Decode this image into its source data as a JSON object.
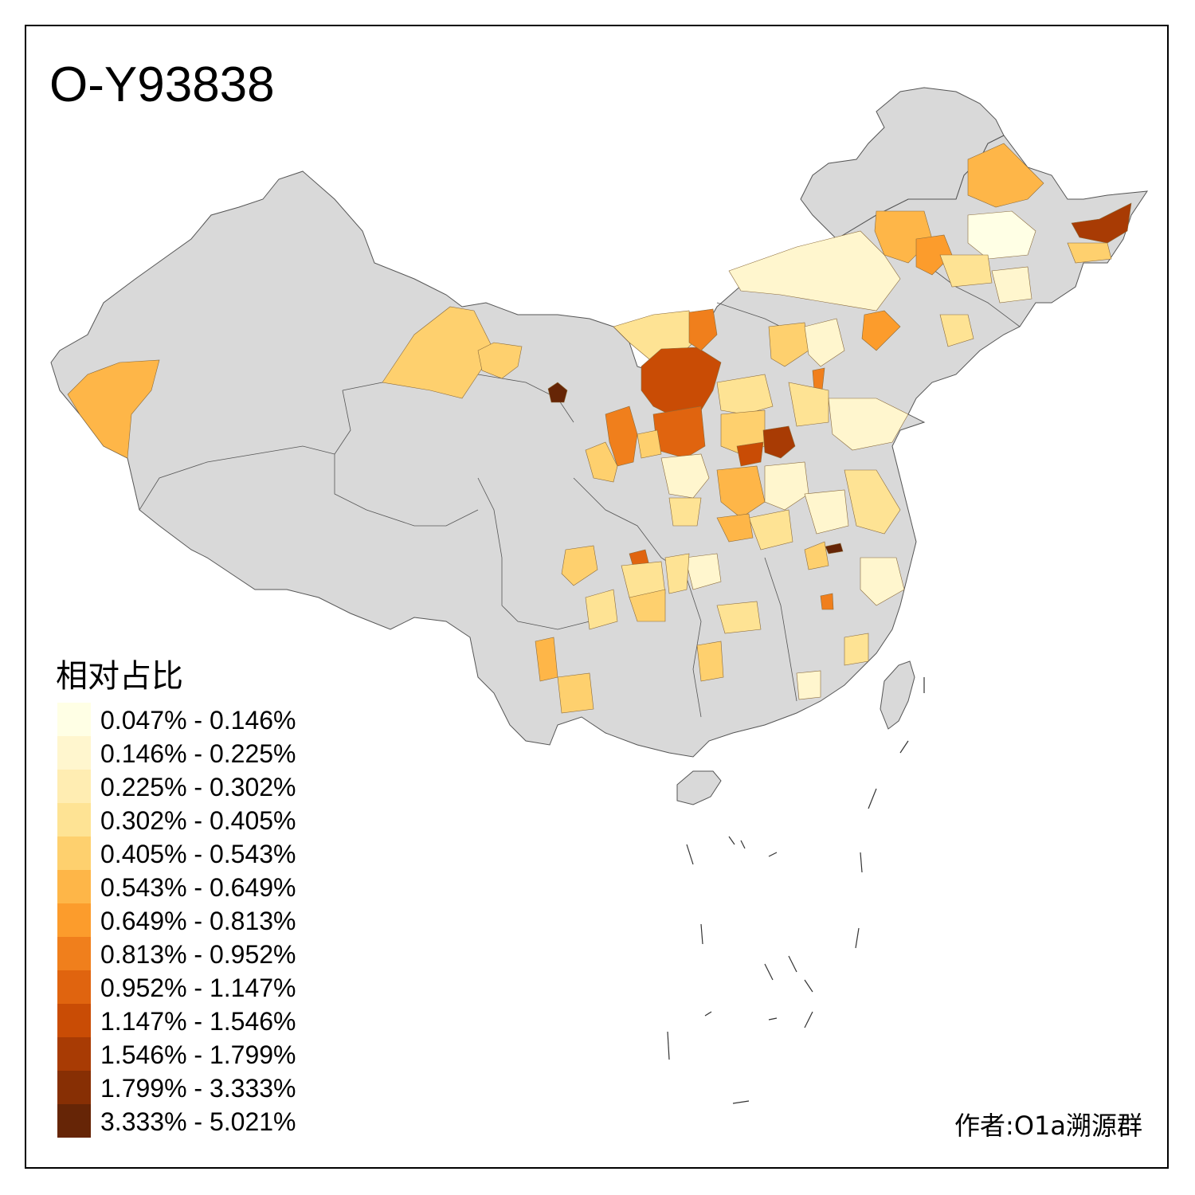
{
  "title": "O-Y93838",
  "legend": {
    "title": "相对占比",
    "items": [
      {
        "label": "0.047% - 0.146%",
        "color": "#ffffe5"
      },
      {
        "label": "0.146% - 0.225%",
        "color": "#fff6ce"
      },
      {
        "label": "0.225% - 0.302%",
        "color": "#ffedb2"
      },
      {
        "label": "0.302% - 0.405%",
        "color": "#fee394"
      },
      {
        "label": "0.405% - 0.543%",
        "color": "#fed06e"
      },
      {
        "label": "0.543% - 0.649%",
        "color": "#feb648"
      },
      {
        "label": "0.649% - 0.813%",
        "color": "#fc9c2c"
      },
      {
        "label": "0.813% - 0.952%",
        "color": "#f07f1c"
      },
      {
        "label": "0.952% - 1.147%",
        "color": "#e0640f"
      },
      {
        "label": "1.147% - 1.546%",
        "color": "#c94c05"
      },
      {
        "label": "1.546% - 1.799%",
        "color": "#a83b04"
      },
      {
        "label": "1.799% - 3.333%",
        "color": "#872f04"
      },
      {
        "label": "3.333% - 5.021%",
        "color": "#662506"
      }
    ]
  },
  "author": "作者:O1a溯源群",
  "colors": {
    "no_data": "#d9d9d9",
    "border": "#555555"
  }
}
